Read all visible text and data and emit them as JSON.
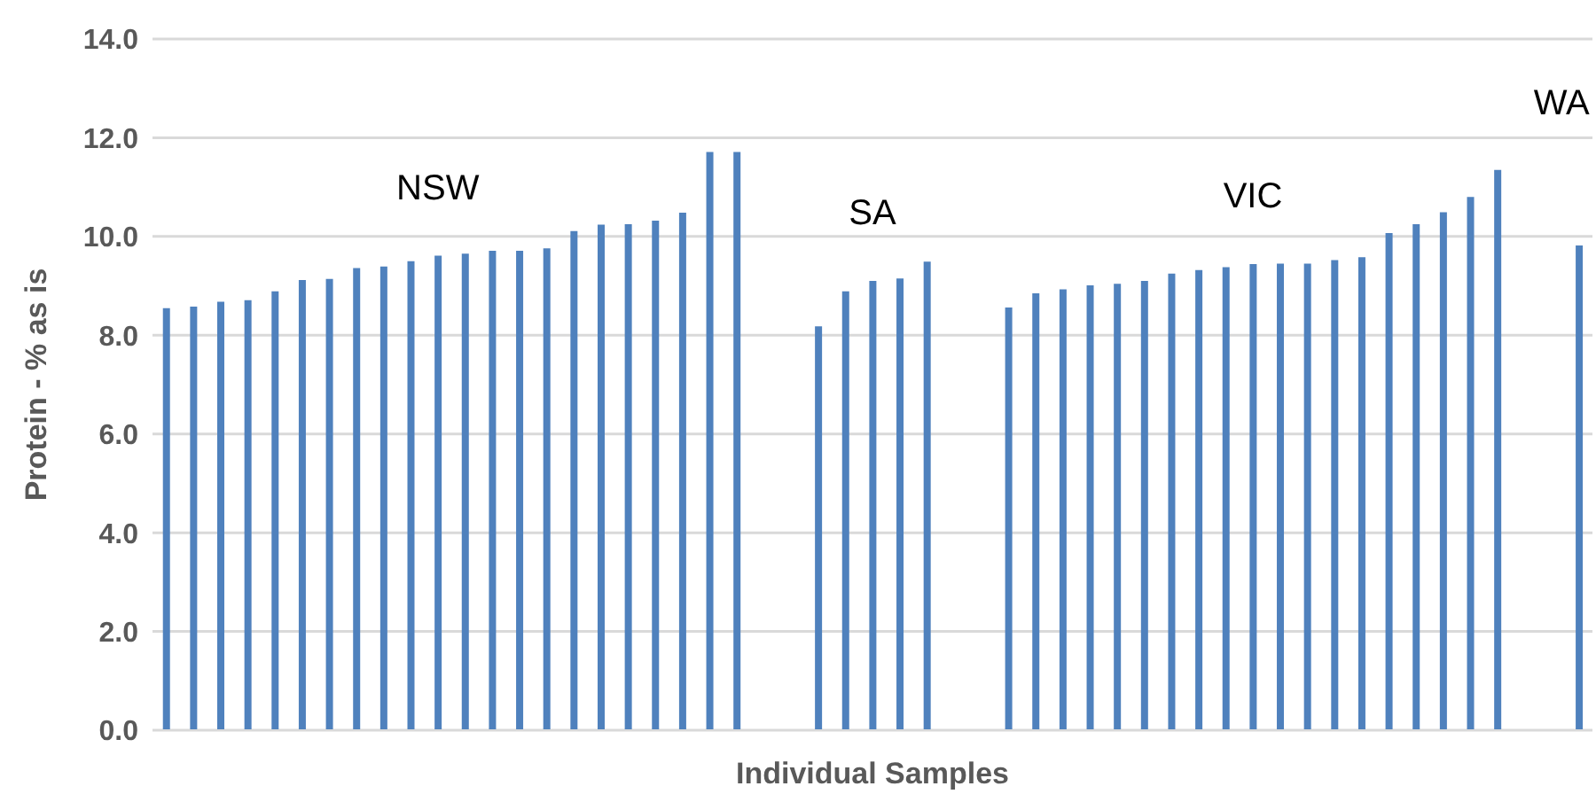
{
  "chart_data": {
    "type": "bar",
    "xlabel": "Individual Samples",
    "ylabel": "Protein - % as is",
    "categories": [
      null,
      null,
      null,
      null,
      null,
      null,
      null,
      null,
      null,
      null,
      null,
      null,
      null,
      null,
      null,
      null,
      null,
      null,
      null,
      null,
      null,
      null,
      null,
      null,
      null,
      null,
      null,
      null,
      null,
      null,
      null,
      null,
      null,
      null,
      null,
      null,
      null,
      null,
      null,
      null,
      null,
      null,
      null,
      null,
      null,
      null,
      null,
      null,
      null,
      null,
      null,
      null,
      null
    ],
    "values": [
      8.55,
      8.58,
      8.68,
      8.71,
      8.89,
      9.12,
      9.14,
      9.36,
      9.39,
      9.5,
      9.61,
      9.65,
      9.71,
      9.71,
      9.76,
      10.11,
      10.24,
      10.25,
      10.32,
      10.48,
      11.71,
      11.71,
      null,
      null,
      8.18,
      8.89,
      9.1,
      9.15,
      9.49,
      null,
      null,
      8.56,
      8.85,
      8.93,
      9.01,
      9.04,
      9.1,
      9.25,
      9.32,
      9.38,
      9.44,
      9.45,
      9.45,
      9.52,
      9.58,
      10.07,
      10.25,
      10.49,
      10.8,
      11.35,
      null,
      null,
      9.82
    ],
    "color": "#4f81bd",
    "ylim": [
      0,
      14
    ],
    "yticks": [
      {
        "value": 0,
        "label": "0.0"
      },
      {
        "value": 2,
        "label": "2.0"
      },
      {
        "value": 4,
        "label": "4.0"
      },
      {
        "value": 6,
        "label": "6.0"
      },
      {
        "value": 8,
        "label": "8.0"
      },
      {
        "value": 10,
        "label": "10.0"
      },
      {
        "value": 12,
        "label": "12.0"
      },
      {
        "value": 14,
        "label": "14.0"
      }
    ],
    "grid": "y",
    "annotations": [
      "NSW",
      "SA",
      "VIC",
      "WA"
    ]
  }
}
